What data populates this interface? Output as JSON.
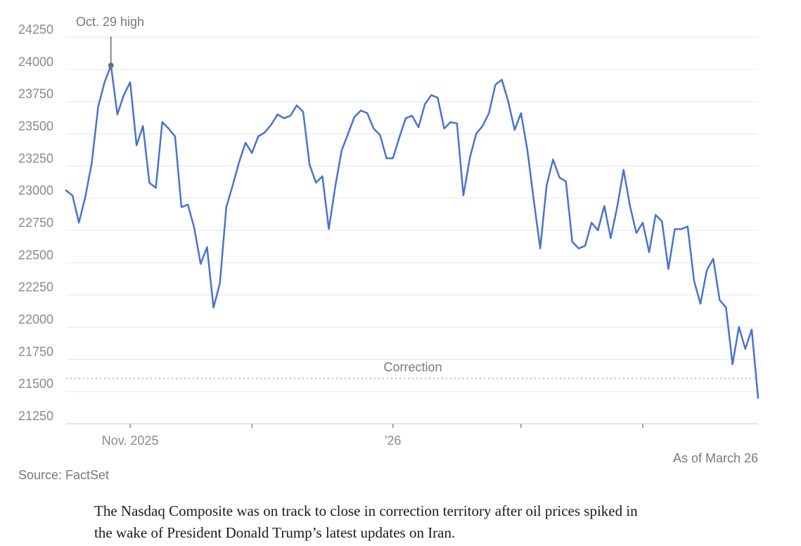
{
  "chart_data": {
    "type": "line",
    "title": "",
    "xlabel": "",
    "ylabel": "",
    "ylim": [
      21250,
      24250
    ],
    "y_ticks": [
      "24250",
      "24000",
      "23750",
      "23500",
      "23250",
      "23000",
      "22750",
      "22500",
      "22250",
      "22000",
      "21750",
      "21500",
      "21250"
    ],
    "x_ticks": [
      {
        "label": "Nov. 2025",
        "index": 10
      },
      {
        "label": "",
        "index": 29
      },
      {
        "label": "'26",
        "index": 51
      },
      {
        "label": "",
        "index": 71
      },
      {
        "label": "",
        "index": 90
      }
    ],
    "series": [
      {
        "name": "Nasdaq Composite",
        "color": "#4a72cf",
        "values": [
          22990,
          22950,
          22740,
          22940,
          23200,
          23640,
          23830,
          23960,
          23580,
          23730,
          23830,
          23340,
          23490,
          23050,
          23010,
          23520,
          23470,
          23410,
          22860,
          22880,
          22700,
          22420,
          22550,
          22080,
          22270,
          22860,
          23030,
          23210,
          23360,
          23280,
          23410,
          23440,
          23500,
          23580,
          23550,
          23570,
          23650,
          23600,
          23190,
          23050,
          23100,
          22690,
          23020,
          23300,
          23430,
          23560,
          23610,
          23590,
          23470,
          23420,
          23240,
          23240,
          23400,
          23550,
          23570,
          23480,
          23660,
          23730,
          23710,
          23470,
          23520,
          23510,
          22950,
          23240,
          23430,
          23490,
          23590,
          23810,
          23850,
          23680,
          23460,
          23590,
          23300,
          22910,
          22540,
          23030,
          23230,
          23090,
          23060,
          22590,
          22540,
          22560,
          22740,
          22680,
          22870,
          22620,
          22860,
          23150,
          22870,
          22660,
          22740,
          22510,
          22800,
          22750,
          22380,
          22690,
          22690,
          22710,
          22290,
          22110,
          22370,
          22460,
          22140,
          22080,
          21640,
          21930,
          21760,
          21910,
          21380
        ]
      }
    ],
    "annotations": {
      "peak_label": "Oct. 29 high",
      "peak_index": 7,
      "threshold_label": "Correction",
      "threshold_value": 21530
    }
  },
  "source_text": "Source: FactSet",
  "as_of_text": "As of March 26",
  "caption": "The Nasdaq Composite was on track to close in correction territory after oil prices spiked in the wake of President Donald Trump’s latest updates on Iran."
}
